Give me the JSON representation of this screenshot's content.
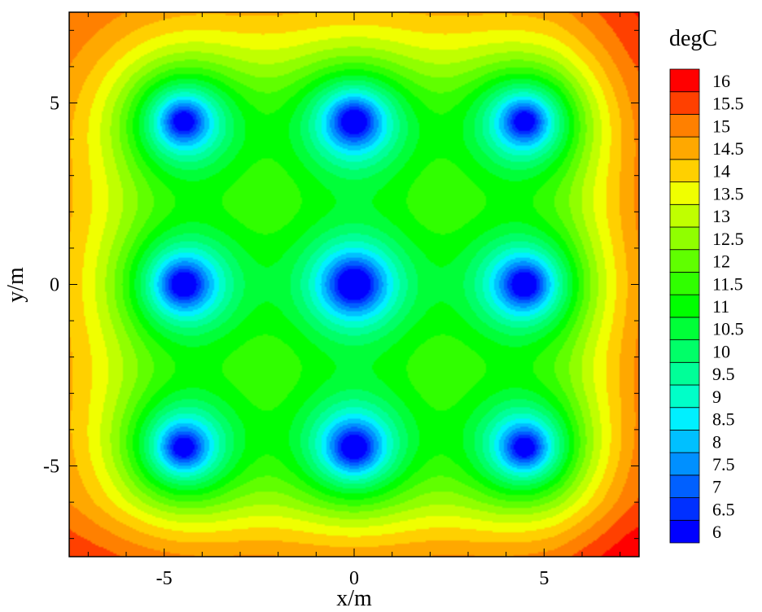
{
  "chart_data": {
    "type": "heatmap",
    "xlabel": "x/m",
    "ylabel": "y/m",
    "xlim": [
      -7.5,
      7.5
    ],
    "ylim": [
      -7.5,
      7.5
    ],
    "x_ticks": [
      -5,
      0,
      5
    ],
    "y_ticks": [
      -5,
      0,
      5
    ],
    "x_tick_labels": [
      "-5",
      "0",
      "5"
    ],
    "y_tick_labels": [
      "-5",
      "0",
      "5"
    ],
    "colorbar": {
      "title": "degC",
      "levels": [
        6,
        6.5,
        7,
        7.5,
        8,
        8.5,
        9,
        9.5,
        10,
        10.5,
        11,
        11.5,
        12,
        12.5,
        13,
        13.5,
        14,
        14.5,
        15,
        15.5,
        16
      ],
      "labels": [
        "6",
        "6.5",
        "7",
        "7.5",
        "8",
        "8.5",
        "9",
        "9.5",
        "10",
        "10.5",
        "11",
        "11.5",
        "12",
        "12.5",
        "13",
        "13.5",
        "14",
        "14.5",
        "15",
        "15.5",
        "16"
      ],
      "colors": [
        "#0000ff",
        "#0030ff",
        "#0060ff",
        "#0090ff",
        "#00c0ff",
        "#00f0ff",
        "#00ffc8",
        "#00ff98",
        "#00ff68",
        "#00ff38",
        "#00ff00",
        "#30ff00",
        "#60ff00",
        "#90ff00",
        "#c0ff00",
        "#f0ff00",
        "#ffd000",
        "#ffa800",
        "#ff8000",
        "#ff4000",
        "#ff0000"
      ]
    },
    "sources": [
      {
        "x": -4.5,
        "y": 4.5
      },
      {
        "x": 0,
        "y": 4.5
      },
      {
        "x": 4.5,
        "y": 4.5
      },
      {
        "x": -4.5,
        "y": 0
      },
      {
        "x": 0,
        "y": 0
      },
      {
        "x": 4.5,
        "y": 0
      },
      {
        "x": -4.5,
        "y": -4.5
      },
      {
        "x": 0,
        "y": -4.5
      },
      {
        "x": 4.5,
        "y": -4.5
      }
    ],
    "source_min_temperature": 6,
    "background_temperature": 16
  }
}
